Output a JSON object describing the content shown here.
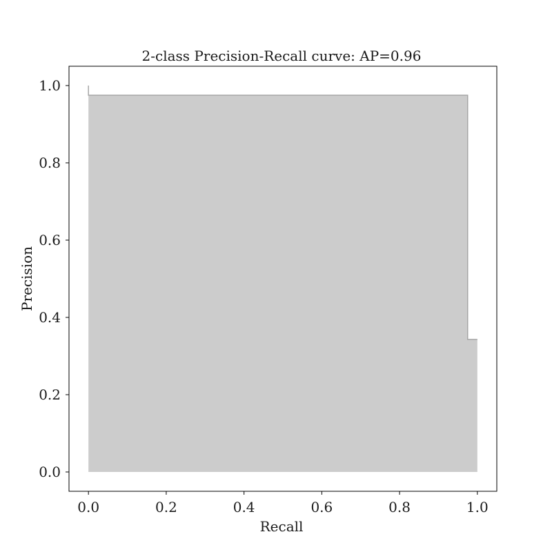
{
  "chart_data": {
    "type": "area",
    "title": "2-class Precision-Recall curve: AP=0.96",
    "xlabel": "Recall",
    "ylabel": "Precision",
    "xlim": [
      -0.05,
      1.05
    ],
    "ylim": [
      -0.05,
      1.05
    ],
    "xticks": [
      0.0,
      0.2,
      0.4,
      0.6,
      0.8,
      1.0
    ],
    "yticks": [
      0.0,
      0.2,
      0.4,
      0.6,
      0.8,
      1.0
    ],
    "xtick_labels": [
      "0.0",
      "0.2",
      "0.4",
      "0.6",
      "0.8",
      "1.0"
    ],
    "ytick_labels": [
      "0.0",
      "0.2",
      "0.4",
      "0.6",
      "0.8",
      "1.0"
    ],
    "grid": false,
    "step_where": "post",
    "series": [
      {
        "recall": [
          0.0,
          0.0,
          0.975,
          0.975,
          1.0
        ],
        "precision": [
          1.0,
          0.975,
          0.975,
          0.343,
          0.343
        ]
      }
    ],
    "fill_color": "#cccccc",
    "line_color": "#a6a6a6"
  }
}
